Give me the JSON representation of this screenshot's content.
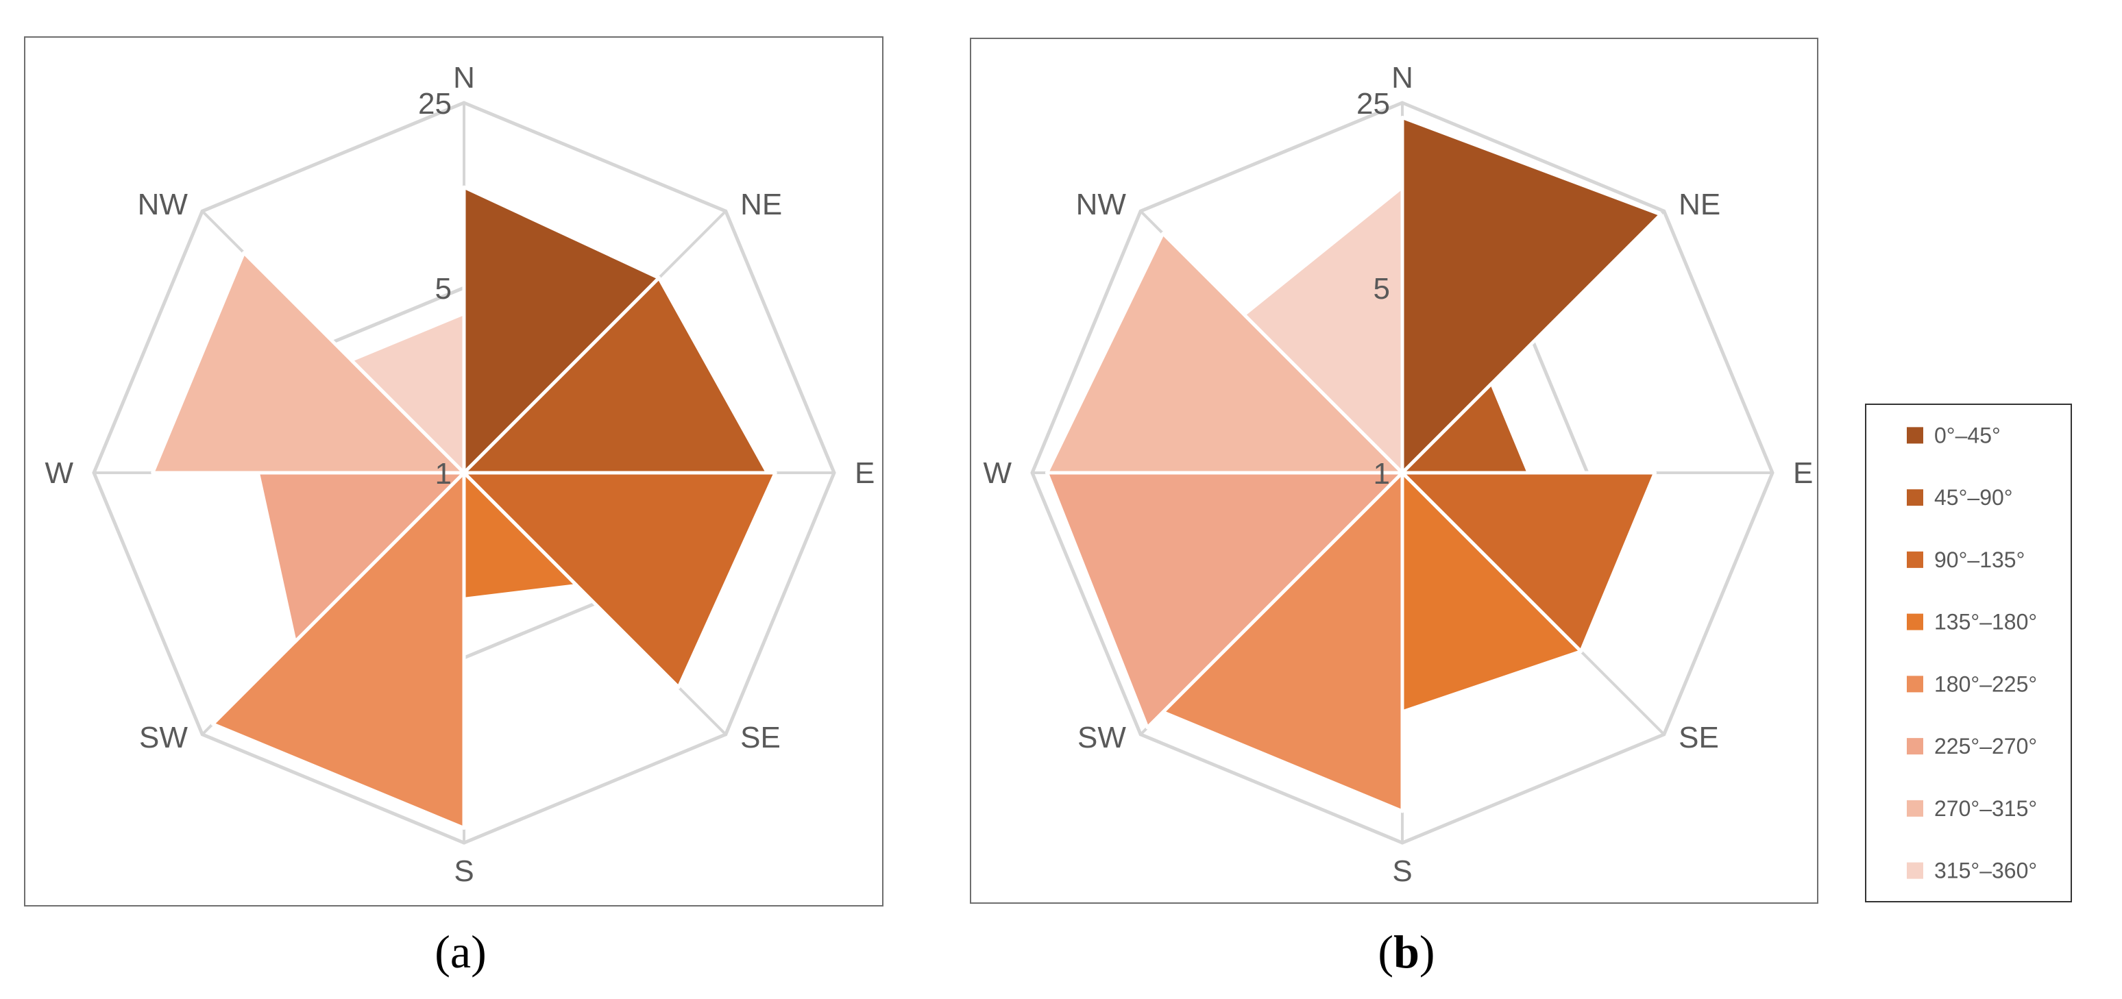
{
  "chart_data": [
    {
      "type": "radar-area",
      "panel": "a",
      "caption_open": "(",
      "caption_letter": "a",
      "caption_close": ")",
      "directions": [
        "N",
        "NE",
        "E",
        "SE",
        "S",
        "SW",
        "W",
        "NW"
      ],
      "radial_tick_labels": [
        "25",
        "5",
        "1"
      ],
      "radial_scale": "log",
      "radial_range": [
        1,
        25
      ],
      "grid": true,
      "series": [
        {
          "name": "0°–45°",
          "from": "N",
          "to": "NE",
          "values": [
            12,
            11
          ]
        },
        {
          "name": "45°–90°",
          "from": "NE",
          "to": "E",
          "values": [
            11,
            14
          ]
        },
        {
          "name": "90°–135°",
          "from": "E",
          "to": "SE",
          "values": [
            15,
            14
          ]
        },
        {
          "name": "135°–180°",
          "from": "SE",
          "to": "S",
          "values": [
            4,
            3
          ]
        },
        {
          "name": "180°–225°",
          "from": "S",
          "to": "SW",
          "values": [
            22,
            22
          ]
        },
        {
          "name": "225°–270°",
          "from": "SW",
          "to": "W",
          "values": [
            8,
            6
          ]
        },
        {
          "name": "270°–315°",
          "from": "W",
          "to": "NW",
          "values": [
            15,
            15
          ]
        },
        {
          "name": "315°–360°",
          "from": "NW",
          "to": "N",
          "values": [
            4,
            4
          ]
        }
      ]
    },
    {
      "type": "radar-area",
      "panel": "b",
      "caption_open": "(",
      "caption_letter": "b",
      "caption_close": ")",
      "directions": [
        "N",
        "NE",
        "E",
        "SE",
        "S",
        "SW",
        "W",
        "NW"
      ],
      "radial_tick_labels": [
        "25",
        "5",
        "1"
      ],
      "radial_scale": "log",
      "radial_range": [
        1,
        25
      ],
      "grid": true,
      "series": [
        {
          "name": "0°–45°",
          "from": "N",
          "to": "NE",
          "values": [
            22,
            24
          ]
        },
        {
          "name": "45°–90°",
          "from": "NE",
          "to": "E",
          "values": [
            3,
            3
          ]
        },
        {
          "name": "90°–135°",
          "from": "E",
          "to": "SE",
          "values": [
            9,
            9
          ]
        },
        {
          "name": "135°–180°",
          "from": "SE",
          "to": "S",
          "values": [
            9,
            8
          ]
        },
        {
          "name": "180°–225°",
          "from": "S",
          "to": "SW",
          "values": [
            19,
            19
          ]
        },
        {
          "name": "225°–270°",
          "from": "SW",
          "to": "W",
          "values": [
            23,
            22
          ]
        },
        {
          "name": "270°–315°",
          "from": "W",
          "to": "NW",
          "values": [
            22,
            19
          ]
        },
        {
          "name": "315°–360°",
          "from": "NW",
          "to": "N",
          "values": [
            7,
            12
          ]
        }
      ]
    }
  ],
  "legend": {
    "placement": "right",
    "items": [
      {
        "label": "0°–45°",
        "color": "#A55220"
      },
      {
        "label": "45°–90°",
        "color": "#BC5F25"
      },
      {
        "label": "90°–135°",
        "color": "#D06A2A"
      },
      {
        "label": "135°–180°",
        "color": "#E57A2E"
      },
      {
        "label": "180°–225°",
        "color": "#EC8E5A"
      },
      {
        "label": "225°–270°",
        "color": "#F0A68A"
      },
      {
        "label": "270°–315°",
        "color": "#F3BBA5"
      },
      {
        "label": "315°–360°",
        "color": "#F6D2C6"
      }
    ]
  }
}
